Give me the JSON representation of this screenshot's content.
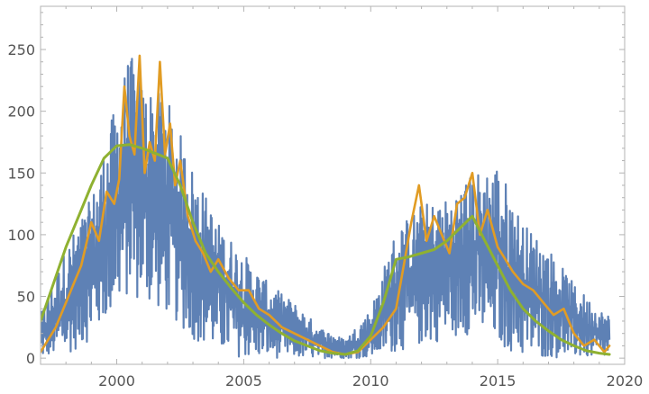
{
  "chart_data": {
    "type": "line",
    "title": "",
    "xlabel": "",
    "ylabel": "",
    "xlim": [
      1997,
      2020
    ],
    "ylim": [
      -5,
      285
    ],
    "x_major_ticks": [
      2000,
      2005,
      2010,
      2015,
      2020
    ],
    "y_major_ticks": [
      0,
      50,
      100,
      150,
      200,
      250
    ],
    "x_tick_labels": [
      "2000",
      "2005",
      "2010",
      "2015",
      "2020"
    ],
    "y_tick_labels": [
      "0",
      "50",
      "100",
      "150",
      "200",
      "250"
    ],
    "grid": false,
    "legend": "none",
    "series": [
      {
        "kind": "daily",
        "color": "#5e81b5",
        "x": [
          1997.0,
          1998.0,
          1999.0,
          2000.0,
          2000.5,
          2001.0,
          2002.0,
          2003.0,
          2004.0,
          2005.0,
          2006.0,
          2007.0,
          2008.0,
          2009.0,
          2010.0,
          2011.0,
          2012.0,
          2013.0,
          2014.0,
          2015.0,
          2016.0,
          2017.0,
          2018.0,
          2019.0,
          2019.4
        ],
        "band_low": [
          0,
          2,
          15,
          40,
          50,
          45,
          35,
          15,
          5,
          0,
          0,
          0,
          0,
          0,
          0,
          5,
          10,
          15,
          20,
          10,
          0,
          0,
          0,
          0,
          0
        ],
        "band_high": [
          35,
          90,
          130,
          210,
          248,
          225,
          210,
          155,
          110,
          85,
          60,
          45,
          25,
          15,
          40,
          105,
          125,
          130,
          150,
          160,
          110,
          90,
          60,
          40,
          35
        ]
      },
      {
        "kind": "monthly",
        "color": "#e19c24",
        "x": [
          1997.0,
          1997.3,
          1997.6,
          1998.0,
          1998.3,
          1998.6,
          1999.0,
          1999.3,
          1999.6,
          1999.9,
          2000.1,
          2000.3,
          2000.5,
          2000.7,
          2000.9,
          2001.1,
          2001.3,
          2001.5,
          2001.7,
          2001.9,
          2002.1,
          2002.3,
          2002.5,
          2002.8,
          2003.1,
          2003.4,
          2003.7,
          2004.0,
          2004.4,
          2004.8,
          2005.2,
          2005.6,
          2006.0,
          2006.5,
          2007.0,
          2007.5,
          2008.0,
          2008.5,
          2009.0,
          2009.5,
          2010.0,
          2010.5,
          2011.0,
          2011.3,
          2011.6,
          2011.9,
          2012.2,
          2012.5,
          2012.8,
          2013.1,
          2013.4,
          2013.7,
          2014.0,
          2014.3,
          2014.6,
          2015.0,
          2015.3,
          2015.6,
          2016.0,
          2016.4,
          2016.8,
          2017.2,
          2017.6,
          2018.0,
          2018.4,
          2018.8,
          2019.2,
          2019.4
        ],
        "y": [
          5,
          15,
          25,
          45,
          60,
          75,
          110,
          95,
          135,
          125,
          145,
          220,
          180,
          165,
          245,
          150,
          175,
          160,
          240,
          165,
          190,
          140,
          160,
          115,
          95,
          85,
          70,
          80,
          65,
          55,
          55,
          40,
          35,
          25,
          20,
          15,
          10,
          5,
          3,
          5,
          15,
          25,
          40,
          75,
          110,
          140,
          95,
          115,
          100,
          85,
          125,
          130,
          150,
          100,
          120,
          90,
          80,
          70,
          60,
          55,
          45,
          35,
          40,
          20,
          10,
          15,
          5,
          10
        ]
      },
      {
        "kind": "smoothed",
        "color": "#8fb131",
        "x": [
          1997.0,
          1997.5,
          1998.0,
          1998.5,
          1999.0,
          1999.5,
          2000.0,
          2000.5,
          2001.0,
          2001.5,
          2002.0,
          2002.5,
          2003.0,
          2003.5,
          2004.0,
          2004.5,
          2005.0,
          2005.5,
          2006.0,
          2006.5,
          2007.0,
          2007.5,
          2008.0,
          2008.5,
          2009.0,
          2009.5,
          2010.0,
          2010.5,
          2011.0,
          2011.5,
          2012.0,
          2012.5,
          2013.0,
          2013.5,
          2014.0,
          2014.5,
          2015.0,
          2015.5,
          2016.0,
          2016.5,
          2017.0,
          2017.5,
          2018.0,
          2018.5,
          2019.0,
          2019.4
        ],
        "y": [
          30,
          60,
          90,
          115,
          140,
          162,
          172,
          173,
          170,
          166,
          162,
          140,
          110,
          85,
          70,
          57,
          45,
          35,
          27,
          20,
          14,
          10,
          6,
          4,
          3,
          6,
          18,
          45,
          80,
          82,
          85,
          88,
          95,
          105,
          115,
          95,
          75,
          55,
          40,
          30,
          22,
          15,
          10,
          6,
          4,
          3
        ]
      }
    ]
  }
}
